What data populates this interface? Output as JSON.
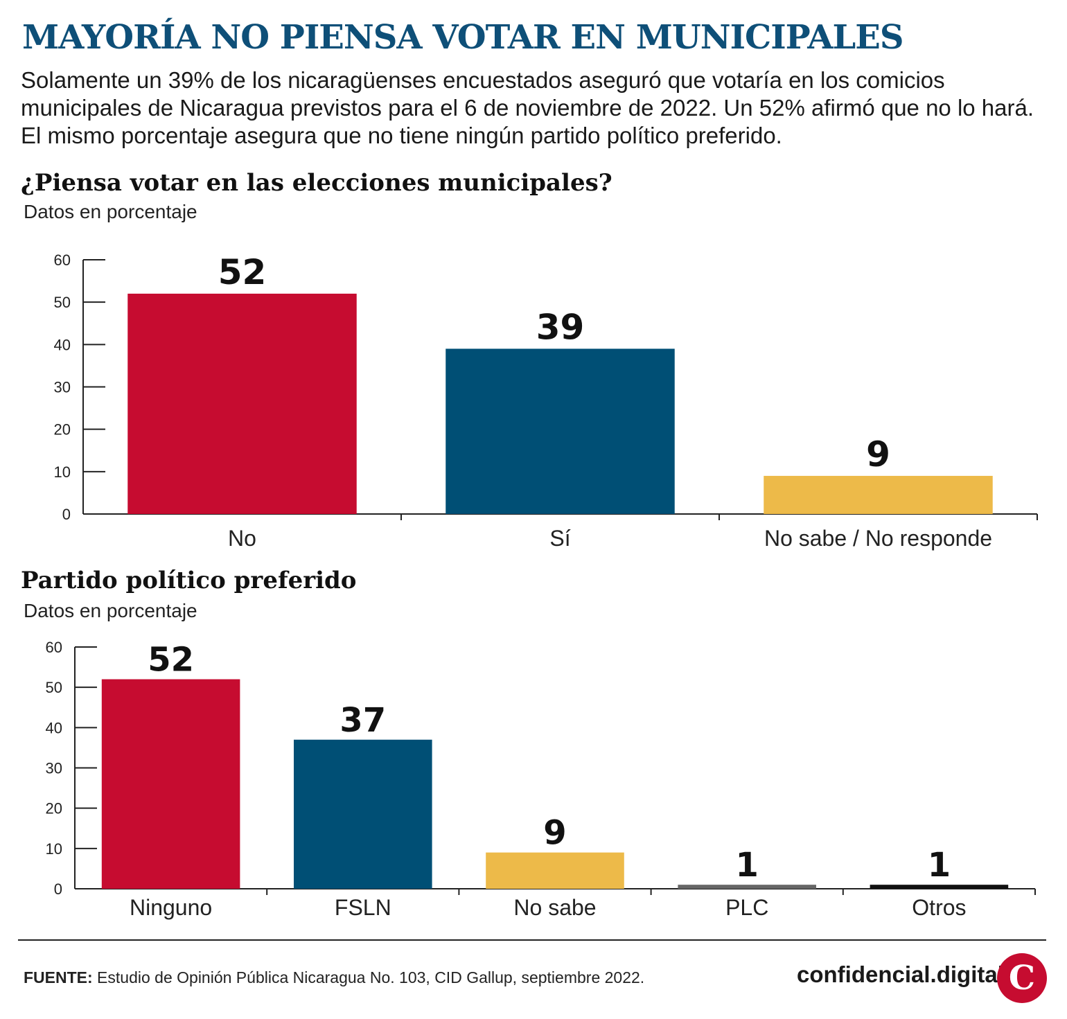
{
  "header": {
    "title": "MAYORÍA NO PIENSA VOTAR EN MUNICIPALES",
    "intro": "Solamente un 39% de los nicaragüenses encuestados aseguró que votaría en los comicios municipales de Nicaragua previstos para el 6 de noviembre de 2022. Un 52% afirmó que no lo hará. El mismo porcentaje asegura que no tiene ningún partido político preferido."
  },
  "chart_data": [
    {
      "type": "bar",
      "title": "¿Piensa votar en las elecciones municipales?",
      "subtitle": "Datos en porcentaje",
      "categories": [
        "No",
        "Sí",
        "No sabe / No responde"
      ],
      "values": [
        52,
        39,
        9
      ],
      "colors": [
        "#c60c30",
        "#004f75",
        "#edba49"
      ],
      "ylim": [
        0,
        60
      ],
      "yticks": [
        0,
        10,
        20,
        30,
        40,
        50,
        60
      ],
      "grid": false
    },
    {
      "type": "bar",
      "title": "Partido político preferido",
      "subtitle": "Datos en porcentaje",
      "categories": [
        "Ninguno",
        "FSLN",
        "No sabe",
        "PLC",
        "Otros"
      ],
      "values": [
        52,
        37,
        9,
        1,
        1
      ],
      "colors": [
        "#c60c30",
        "#004f75",
        "#edba49",
        "#666666",
        "#111111"
      ],
      "ylim": [
        0,
        60
      ],
      "yticks": [
        0,
        10,
        20,
        30,
        40,
        50,
        60
      ],
      "grid": false
    }
  ],
  "footer": {
    "source_label": "FUENTE:",
    "source_text": " Estudio de Opinión Pública Nicaragua No. 103, CID Gallup, septiembre 2022.",
    "brand": "confidencial.digital",
    "logo_letter": "C",
    "logo_color": "#c60c30"
  }
}
